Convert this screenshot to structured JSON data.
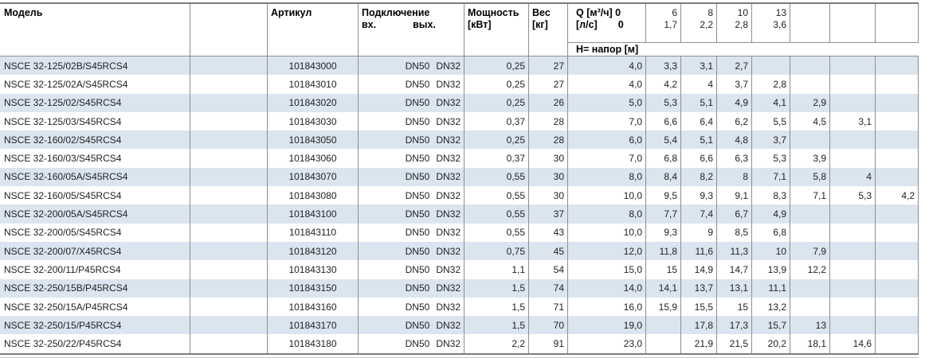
{
  "table": {
    "header": {
      "model": "Модель",
      "article": "Артикул",
      "connection": "Подключение",
      "conn_in": "вх.",
      "conn_out": "вых.",
      "power_line1": "Мощность",
      "power_line2": "[кВт]",
      "weight_line1": "Вес",
      "weight_line2": "[кг]",
      "q_line1": "Q [м³/ч] 0",
      "q_line2_label": "[л/с]",
      "q_line2_zero": "0",
      "flow_m3h": [
        "6",
        "8",
        "10",
        "13",
        "",
        "",
        ""
      ],
      "flow_ls": [
        "1,7",
        "2,2",
        "2,8",
        "3,6",
        "",
        "",
        ""
      ],
      "head_band": "H= напор [м]"
    },
    "rows": [
      {
        "model": "NSCE 32-125/02B/S45RCS4",
        "article": "101843000",
        "dn_in": "DN50",
        "dn_out": "DN32",
        "power": "0,25",
        "weight": "27",
        "head": [
          "4,0",
          "3,3",
          "3,1",
          "2,7",
          "",
          "",
          "",
          ""
        ]
      },
      {
        "model": "NSCE 32-125/02A/S45RCS4",
        "article": "101843010",
        "dn_in": "DN50",
        "dn_out": "DN32",
        "power": "0,25",
        "weight": "27",
        "head": [
          "4,0",
          "4,2",
          "4",
          "3,7",
          "2,8",
          "",
          "",
          ""
        ]
      },
      {
        "model": "NSCE 32-125/02/S45RCS4",
        "article": "101843020",
        "dn_in": "DN50",
        "dn_out": "DN32",
        "power": "0,25",
        "weight": "26",
        "head": [
          "5,0",
          "5,3",
          "5,1",
          "4,9",
          "4,1",
          "2,9",
          "",
          ""
        ]
      },
      {
        "model": "NSCE 32-125/03/S45RCS4",
        "article": "101843030",
        "dn_in": "DN50",
        "dn_out": "DN32",
        "power": "0,37",
        "weight": "28",
        "head": [
          "7,0",
          "6,6",
          "6,4",
          "6,2",
          "5,5",
          "4,5",
          "3,1",
          ""
        ]
      },
      {
        "model": "NSCE 32-160/02/S45RCS4",
        "article": "101843050",
        "dn_in": "DN50",
        "dn_out": "DN32",
        "power": "0,25",
        "weight": "28",
        "head": [
          "6,0",
          "5,4",
          "5,1",
          "4,8",
          "3,7",
          "",
          "",
          ""
        ]
      },
      {
        "model": "NSCE 32-160/03/S45RCS4",
        "article": "101843060",
        "dn_in": "DN50",
        "dn_out": "DN32",
        "power": "0,37",
        "weight": "30",
        "head": [
          "7,0",
          "6,8",
          "6,6",
          "6,3",
          "5,3",
          "3,9",
          "",
          ""
        ]
      },
      {
        "model": "NSCE 32-160/05A/S45RCS4",
        "article": "101843070",
        "dn_in": "DN50",
        "dn_out": "DN32",
        "power": "0,55",
        "weight": "30",
        "head": [
          "8,0",
          "8,4",
          "8,2",
          "8",
          "7,1",
          "5,8",
          "4",
          ""
        ]
      },
      {
        "model": "NSCE 32-160/05/S45RCS4",
        "article": "101843080",
        "dn_in": "DN50",
        "dn_out": "DN32",
        "power": "0,55",
        "weight": "30",
        "head": [
          "10,0",
          "9,5",
          "9,3",
          "9,1",
          "8,3",
          "7,1",
          "5,3",
          "4,2"
        ]
      },
      {
        "model": "NSCE 32-200/05A/S45RCS4",
        "article": "101843100",
        "dn_in": "DN50",
        "dn_out": "DN32",
        "power": "0,55",
        "weight": "37",
        "head": [
          "8,0",
          "7,7",
          "7,4",
          "6,7",
          "4,9",
          "",
          "",
          ""
        ]
      },
      {
        "model": "NSCE 32-200/05/S45RCS4",
        "article": "101843110",
        "dn_in": "DN50",
        "dn_out": "DN32",
        "power": "0,55",
        "weight": "43",
        "head": [
          "10,0",
          "9,3",
          "9",
          "8,5",
          "6,8",
          "",
          "",
          ""
        ]
      },
      {
        "model": "NSCE 32-200/07/X45RCS4",
        "article": "101843120",
        "dn_in": "DN50",
        "dn_out": "DN32",
        "power": "0,75",
        "weight": "45",
        "head": [
          "12,0",
          "11,8",
          "11,6",
          "11,3",
          "10",
          "7,9",
          "",
          ""
        ]
      },
      {
        "model": "NSCE 32-200/11/P45RCS4",
        "article": "101843130",
        "dn_in": "DN50",
        "dn_out": "DN32",
        "power": "1,1",
        "weight": "54",
        "head": [
          "15,0",
          "15",
          "14,9",
          "14,7",
          "13,9",
          "12,2",
          "",
          ""
        ]
      },
      {
        "model": "NSCE 32-250/15B/P45RCS4",
        "article": "101843150",
        "dn_in": "DN50",
        "dn_out": "DN32",
        "power": "1,5",
        "weight": "74",
        "head": [
          "14,0",
          "14,1",
          "13,7",
          "13,1",
          "11,1",
          "",
          "",
          ""
        ]
      },
      {
        "model": "NSCE 32-250/15A/P45RCS4",
        "article": "101843160",
        "dn_in": "DN50",
        "dn_out": "DN32",
        "power": "1,5",
        "weight": "71",
        "head": [
          "16,0",
          "15,9",
          "15,5",
          "15",
          "13,2",
          "",
          "",
          ""
        ]
      },
      {
        "model": "NSCE 32-250/15/P45RCS4",
        "article": "101843170",
        "dn_in": "DN50",
        "dn_out": "DN32",
        "power": "1,5",
        "weight": "70",
        "head": [
          "19,0",
          "",
          "17,8",
          "17,3",
          "15,7",
          "13",
          "",
          ""
        ]
      },
      {
        "model": "NSCE 32-250/22/P45RCS4",
        "article": "101843180",
        "dn_in": "DN50",
        "dn_out": "DN32",
        "power": "2,2",
        "weight": "91",
        "head": [
          "23,0",
          "",
          "21,9",
          "21,5",
          "20,2",
          "18,1",
          "14,6",
          ""
        ]
      }
    ]
  },
  "colors": {
    "stripe_blue": "#dbe5f0",
    "grid_line": "#8e8e8e",
    "heavy_border": "#7c7c7c"
  }
}
